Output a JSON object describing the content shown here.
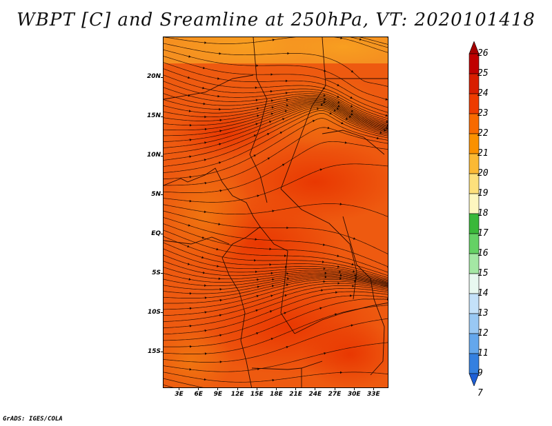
{
  "title": "WBPT [C] and Sreamline at 250hPa, VT: 2020101418",
  "footer": "GrADS: IGES/COLA",
  "map": {
    "variable": "Wet-bulb potential temperature (shaded) and streamlines",
    "level": "250hPa",
    "valid_time": "2020101418",
    "lat_labels": [
      "20N",
      "15N",
      "10N",
      "5N",
      "EQ",
      "5S",
      "10S",
      "15S"
    ],
    "lat_values": [
      20,
      15,
      10,
      5,
      0,
      -5,
      -10,
      -15
    ],
    "lon_labels": [
      "3E",
      "6E",
      "9E",
      "12E",
      "15E",
      "18E",
      "21E",
      "24E",
      "27E",
      "30E",
      "33E"
    ],
    "lon_values": [
      3,
      6,
      9,
      12,
      15,
      18,
      21,
      24,
      27,
      30,
      33
    ],
    "extent": {
      "lon_min": 0.5,
      "lon_max": 35.3,
      "lat_min": -19.6,
      "lat_max": 25.2
    }
  },
  "colorbar": {
    "labels": [
      "26",
      "25",
      "24",
      "23",
      "22",
      "21",
      "20",
      "19",
      "18",
      "17",
      "16",
      "15",
      "14",
      "13",
      "12",
      "11",
      "9",
      "7"
    ],
    "colors": [
      "#a50000",
      "#c00000",
      "#d81e00",
      "#ee3c00",
      "#f86a00",
      "#fa9100",
      "#fbb934",
      "#fde07c",
      "#fdf7c0",
      "#3ab83a",
      "#65d165",
      "#a4e7a4",
      "#e8f8f0",
      "#c4e1f9",
      "#99c8f3",
      "#64a7ec",
      "#3480e0",
      "#1e5fd6"
    ]
  }
}
